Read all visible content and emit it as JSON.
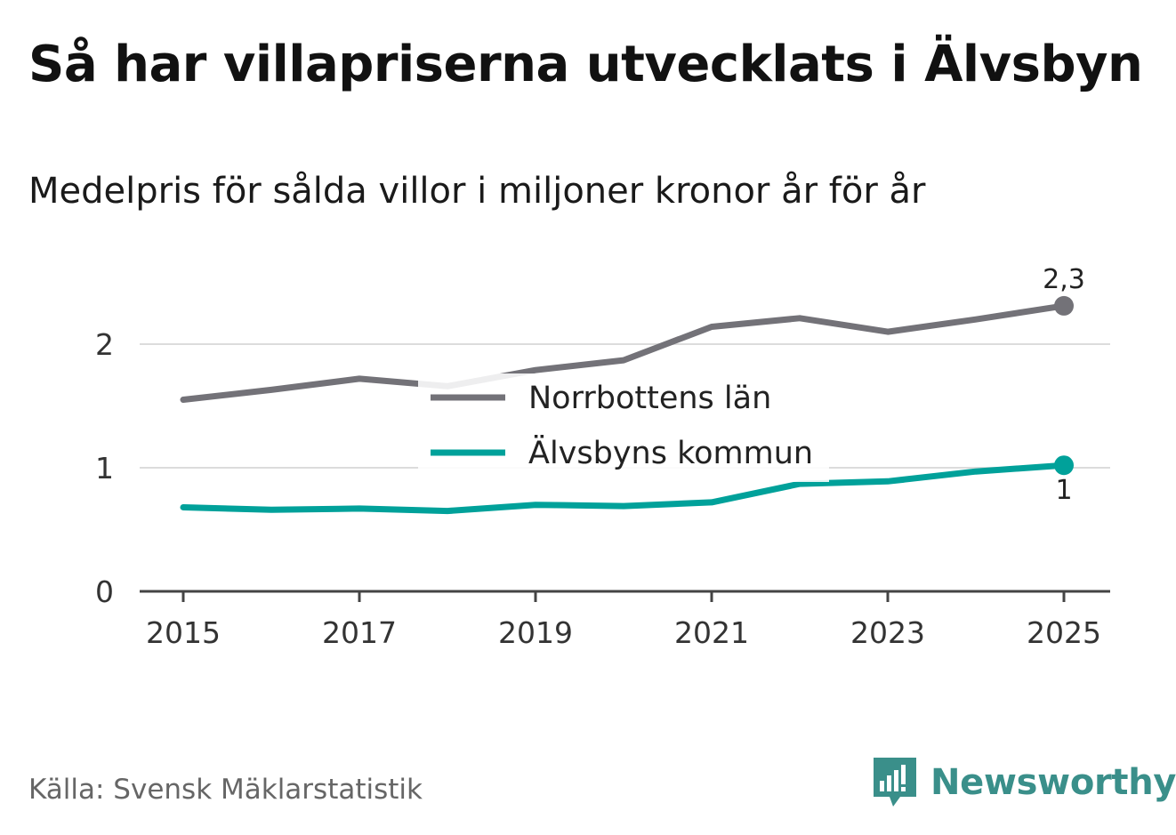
{
  "title": "Så har villapriserna utvecklats i Älvsbyn",
  "subtitle": "Medelpris för sålda villor i miljoner kronor år för år",
  "source": "Källa: Svensk Mäklarstatistik",
  "brand": {
    "name": "Newsworthy",
    "icon": "newsworthy-logo-icon",
    "color": "#3a8f8a"
  },
  "chart_data": {
    "type": "line",
    "x": [
      2015,
      2016,
      2017,
      2018,
      2019,
      2020,
      2021,
      2022,
      2023,
      2024,
      2025
    ],
    "x_ticks": [
      "2015",
      "2017",
      "2019",
      "2021",
      "2023",
      "2025"
    ],
    "y_ticks": [
      "0",
      "1",
      "2"
    ],
    "ylim": [
      0,
      2.5
    ],
    "series": [
      {
        "name": "Norrbottens län",
        "color": "#737278",
        "values": [
          1.55,
          1.63,
          1.72,
          1.66,
          1.79,
          1.87,
          2.14,
          2.21,
          2.1,
          2.2,
          2.31
        ],
        "end_label": "2,3"
      },
      {
        "name": "Älvsbyns kommun",
        "color": "#00a19a",
        "values": [
          0.68,
          0.66,
          0.67,
          0.65,
          0.7,
          0.69,
          0.72,
          0.87,
          0.89,
          0.97,
          1.02
        ],
        "end_label": "1"
      }
    ],
    "legend": [
      "Norrbottens län",
      "Älvsbyns kommun"
    ],
    "grid": true
  }
}
